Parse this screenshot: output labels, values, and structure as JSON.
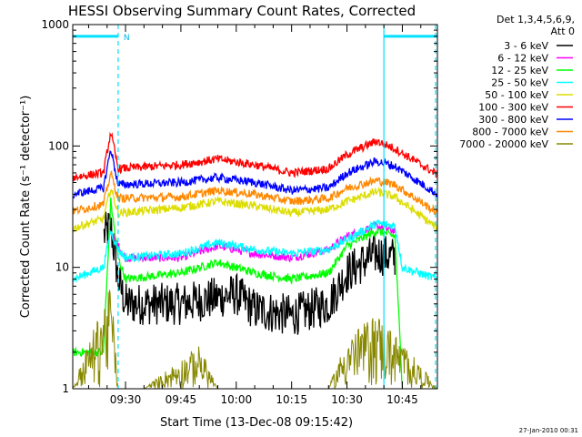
{
  "chart_data": {
    "type": "line",
    "title": "HESSI Observing Summary Count Rates, Corrected",
    "ylabel": "Corrected Count Rate (s⁻¹ detector⁻¹)",
    "xlabel": "Start Time (13-Dec-08 09:15:42)",
    "y_scale": "log",
    "ylim": [
      1,
      1000
    ],
    "xlim": [
      "09:15:42",
      "10:54:30"
    ],
    "x_ticks": [
      "09:30",
      "09:45",
      "10:00",
      "10:15",
      "10:30",
      "10:45"
    ],
    "y_ticks": [
      "1",
      "10",
      "100",
      "1000"
    ],
    "legend_header": [
      "Det 1,3,4,5,6,9,",
      "Att 0"
    ],
    "legend_position": "right",
    "footer_date": "27-Jan-2010 00:31",
    "flag_marker_label": "N",
    "series": [
      {
        "name": "3 - 6 keV",
        "color": "#000000",
        "x": [
          "09:15:42",
          "09:24",
          "09:26",
          "09:28",
          "09:30",
          "09:45",
          "10:00",
          "10:05",
          "10:15",
          "10:25",
          "10:30",
          "10:38",
          "10:43",
          "10:44"
        ],
        "y": [
          null,
          18,
          22,
          8,
          5,
          5,
          6,
          4.5,
          4,
          5,
          9,
          13,
          12,
          null
        ]
      },
      {
        "name": "6 - 12 keV",
        "color": "#ff00ff",
        "x": [
          "09:26",
          "09:28",
          "09:30",
          "09:45",
          "09:55",
          "10:05",
          "10:15",
          "10:25",
          "10:30",
          "10:38",
          "10:43",
          "10:45"
        ],
        "y": [
          20,
          15,
          12,
          12,
          15,
          13,
          12,
          14,
          18,
          22,
          20,
          null
        ]
      },
      {
        "name": "12 - 25 keV",
        "color": "#00ff00",
        "x": [
          "09:15:42",
          "09:24",
          "09:26",
          "09:28",
          "09:30",
          "09:45",
          "09:55",
          "10:05",
          "10:15",
          "10:25",
          "10:30",
          "10:38",
          "10:43",
          "10:45"
        ],
        "y": [
          2,
          2,
          35,
          12,
          8,
          9,
          11,
          9,
          8,
          9,
          15,
          20,
          18,
          1
        ]
      },
      {
        "name": "25 - 50 keV",
        "color": "#00ffff",
        "x": [
          "09:15:42",
          "09:24",
          "09:26",
          "09:28",
          "09:30",
          "09:45",
          "09:55",
          "10:05",
          "10:15",
          "10:25",
          "10:30",
          "10:38",
          "10:43",
          "10:45",
          "10:54:30"
        ],
        "y": [
          8,
          10,
          20,
          14,
          12,
          13,
          16,
          14,
          13,
          14,
          17,
          23,
          22,
          10,
          8
        ]
      },
      {
        "name": "50 - 100 keV",
        "color": "#dddd00",
        "x": [
          "09:15:42",
          "09:24",
          "09:26",
          "09:28",
          "09:45",
          "09:55",
          "10:05",
          "10:15",
          "10:25",
          "10:30",
          "10:38",
          "10:43",
          "10:54:30"
        ],
        "y": [
          21,
          25,
          45,
          28,
          31,
          35,
          32,
          28,
          30,
          35,
          42,
          38,
          21
        ]
      },
      {
        "name": "100 - 300 keV",
        "color": "#ff0000",
        "x": [
          "09:15:42",
          "09:24",
          "09:26",
          "09:28",
          "09:45",
          "09:55",
          "10:05",
          "10:15",
          "10:25",
          "10:30",
          "10:38",
          "10:43",
          "10:54:30"
        ],
        "y": [
          55,
          60,
          130,
          65,
          70,
          78,
          70,
          60,
          65,
          85,
          110,
          95,
          58
        ]
      },
      {
        "name": "300 - 800 keV",
        "color": "#0000ff",
        "x": [
          "09:15:42",
          "09:24",
          "09:26",
          "09:28",
          "09:45",
          "09:55",
          "10:05",
          "10:15",
          "10:25",
          "10:30",
          "10:38",
          "10:43",
          "10:54:30"
        ],
        "y": [
          40,
          45,
          95,
          48,
          50,
          55,
          50,
          43,
          45,
          60,
          75,
          68,
          40
        ]
      },
      {
        "name": "800 - 7000 keV",
        "color": "#ff8800",
        "x": [
          "09:15:42",
          "09:24",
          "09:26",
          "09:28",
          "09:45",
          "09:55",
          "10:05",
          "10:15",
          "10:25",
          "10:30",
          "10:38",
          "10:43",
          "10:54:30"
        ],
        "y": [
          29,
          33,
          60,
          37,
          38,
          43,
          40,
          35,
          37,
          45,
          52,
          48,
          28
        ]
      },
      {
        "name": "7000 - 20000 keV",
        "color": "#888800",
        "x": [
          "09:15:42",
          "09:25",
          "09:26",
          "09:28",
          "09:35",
          "09:50",
          "09:55",
          "10:25",
          "10:30",
          "10:38",
          "10:44",
          "10:54:30"
        ],
        "y": [
          1,
          4,
          5,
          1,
          1,
          1.8,
          1,
          1,
          2,
          3,
          2,
          1
        ]
      }
    ],
    "vertical_markers": [
      {
        "x": "09:28",
        "color": "#00e0ff",
        "style": "dashed"
      },
      {
        "x": "10:40",
        "color": "#00e0ff",
        "style": "solid"
      },
      {
        "x": "10:54",
        "color": "#00e0ff",
        "style": "dashed"
      }
    ],
    "flag_bars": [
      {
        "x_start": "09:15:42",
        "x_end": "09:28",
        "y": 800,
        "color": "#00e0ff"
      },
      {
        "x_start": "10:40",
        "x_end": "10:54:30",
        "y": 800,
        "color": "#00e0ff"
      }
    ]
  }
}
